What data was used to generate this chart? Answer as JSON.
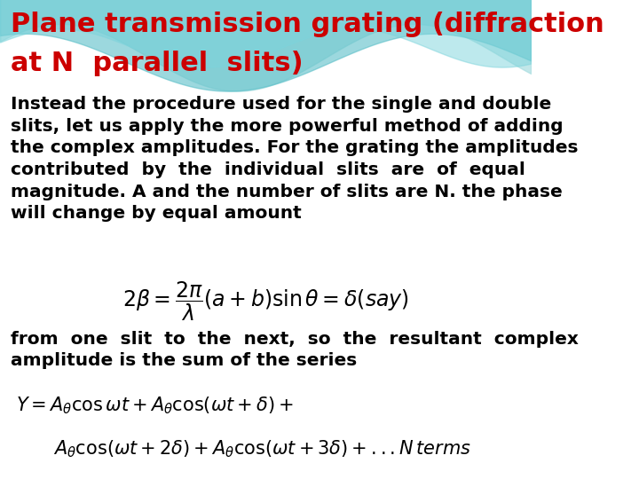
{
  "title_line1": "Plane transmission grating (diffraction",
  "title_line2": "at N  parallel  slits)",
  "title_color": "#cc0000",
  "title_fontsize": 22,
  "body_text_lines": [
    "Instead the procedure used for the single and double",
    "slits, let us apply the more powerful method of adding",
    "the complex amplitudes. For the grating the amplitudes",
    "contributed  by  the  individual  slits  are  of  equal",
    "magnitude. A and the number of slits are N. the phase",
    "will change by equal amount"
  ],
  "body_fontsize": 14.5,
  "body_color": "#000000",
  "after_eq1_lines": [
    "from  one  slit  to  the  next,  so  the  resultant  complex",
    "amplitude is the sum of the series"
  ],
  "eq1": "2\\beta = \\dfrac{2\\pi}{\\lambda}(a+b)\\sin\\theta = \\delta(say)",
  "eq2": "Y = A_{\\theta}\\cos\\omega t + A_{\\theta}\\cos(\\omega t+\\delta)+",
  "eq3": "A_{\\theta}\\cos(\\omega t+2\\delta)+A_{\\theta}\\cos(\\omega t+3\\delta)+...N\\,terms",
  "eq_fontsize": 15,
  "bg_color": "#ffffff",
  "wave_color1": "#a8dde0",
  "wave_color2": "#5bbfc8",
  "wave_color3": "#7dd4dc"
}
